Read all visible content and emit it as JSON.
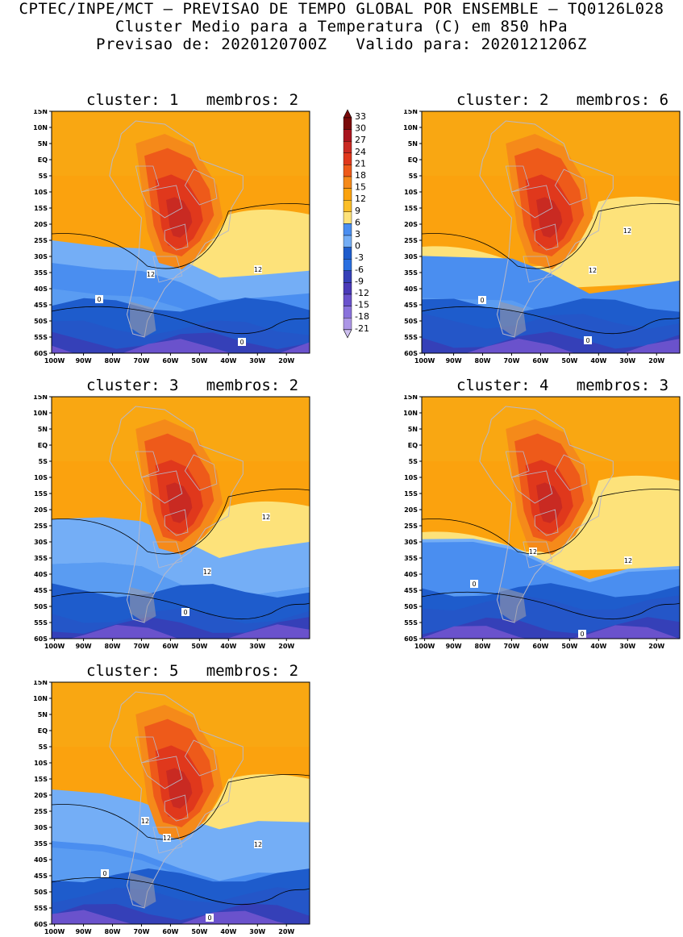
{
  "header": {
    "line1": "CPTEC/INPE/MCT — PREVISAO DE TEMPO GLOBAL POR ENSEMBLE — TQ0126L028",
    "line2": "Cluster Medio para a Temperatura (C) em 850 hPa",
    "line3": "Previsao de: 2020120700Z   Valido para: 2020121206Z"
  },
  "axes": {
    "lat_labels": [
      "15N",
      "10N",
      "5N",
      "EQ",
      "5S",
      "10S",
      "15S",
      "20S",
      "25S",
      "30S",
      "35S",
      "40S",
      "45S",
      "50S",
      "55S",
      "60S"
    ],
    "lon_labels": [
      "100W",
      "90W",
      "80W",
      "70W",
      "60W",
      "50W",
      "40W",
      "30W",
      "20W"
    ]
  },
  "colorbar": {
    "levels": [
      "33",
      "30",
      "27",
      "24",
      "21",
      "18",
      "15",
      "12",
      "9",
      "6",
      "3",
      "0",
      "-3",
      "-6",
      "-9",
      "-12",
      "-15",
      "-18",
      "-21"
    ],
    "colors": [
      "#7a0a0a",
      "#a8141e",
      "#c92a22",
      "#e0381c",
      "#ee5a1a",
      "#f58a1a",
      "#fba20e",
      "#fbbe28",
      "#fde27a",
      "#4a8ef0",
      "#74aef6",
      "#1e5ccc",
      "#2a6fe0",
      "#3540b8",
      "#4a3ab8",
      "#6a52cc",
      "#8a72dc",
      "#ac96e6",
      "#cec0f0"
    ]
  },
  "panels": [
    {
      "title": "cluster: 1   membros: 2",
      "labels": [
        "12",
        "12",
        "0",
        "0"
      ]
    },
    {
      "title": "cluster: 2   membros: 6",
      "labels": [
        "12",
        "12",
        "0",
        "0"
      ]
    },
    {
      "title": "cluster: 3   membros: 2",
      "labels": [
        "12",
        "12",
        "0"
      ]
    },
    {
      "title": "cluster: 4   membros: 3",
      "labels": [
        "12",
        "12",
        "0",
        "0"
      ]
    },
    {
      "title": "cluster: 5   membros: 2",
      "labels": [
        "12",
        "12",
        "12",
        "0",
        "0"
      ]
    }
  ]
}
